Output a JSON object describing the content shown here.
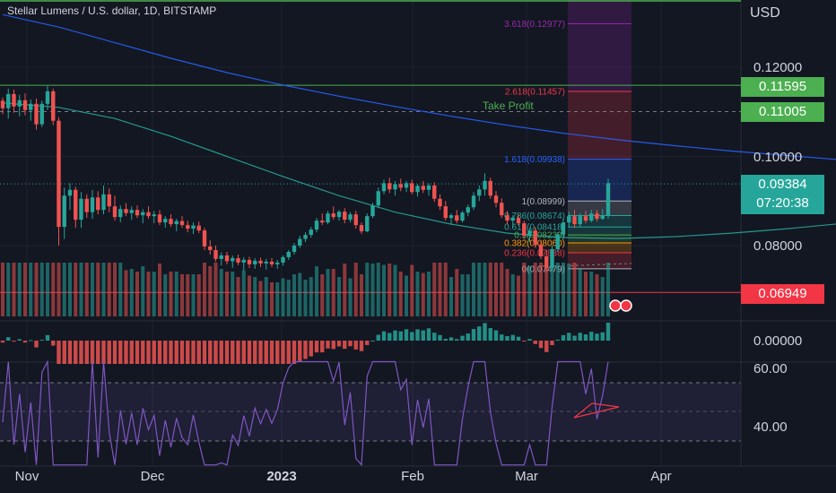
{
  "header": {
    "symbol_title": "Stellar Lumens / U.S. dollar, 1D, BITSTAMP",
    "currency": "USD"
  },
  "price_tags": {
    "tp1": {
      "value": "0.11595",
      "color": "#4caf50"
    },
    "tp2": {
      "value": "0.11005",
      "color": "#4caf50"
    },
    "last": {
      "value": "0.09384",
      "countdown": "07:20:38",
      "color": "#26a69a"
    },
    "stop": {
      "value": "0.06949",
      "color": "#f23645"
    }
  },
  "annotations": {
    "take_profit": "Take Profit"
  },
  "chart_data": {
    "type": "candlestick",
    "price_axis": {
      "ticks": [
        "0.12000",
        "0.10000",
        "0.08000"
      ],
      "tick_values": [
        0.12,
        0.1,
        0.08
      ],
      "range": [
        0.0625,
        0.1355
      ]
    },
    "time_axis": {
      "labels": [
        "Nov",
        "Dec",
        "2023",
        "Feb",
        "Mar",
        "Apr"
      ]
    },
    "horizontal_levels": [
      {
        "price": 0.11595,
        "style": "solid",
        "color": "#4caf50"
      },
      {
        "price": 0.11005,
        "style": "dashed",
        "color": "#787b86"
      },
      {
        "price": 0.09384,
        "style": "dotted",
        "color": "#26a69a"
      },
      {
        "price": 0.06949,
        "style": "solid",
        "color": "#f23645"
      }
    ],
    "fibonacci_extension": [
      {
        "label": "3.618(0.12977)",
        "price": 0.12977,
        "color": "#9c27b0"
      },
      {
        "label": "2.618(0.11457)",
        "price": 0.11457,
        "color": "#f23645"
      },
      {
        "label": "1.618(0.09938)",
        "price": 0.09938,
        "color": "#2962ff"
      },
      {
        "label": "1(0.08999)",
        "price": 0.08999,
        "color": "#b2b5be"
      },
      {
        "label": "0.786(0.08674)",
        "price": 0.08674,
        "color": "#26a69a"
      },
      {
        "label": "0.618(0.08418)",
        "price": 0.08418,
        "color": "#26a69a"
      },
      {
        "label": "0.5(0.08239)",
        "price": 0.08239,
        "color": "#4caf50"
      },
      {
        "label": "0.382(0.08060)",
        "price": 0.0806,
        "color": "#ff9800"
      },
      {
        "label": "0.236(0.07838)",
        "price": 0.07838,
        "color": "#f23645"
      },
      {
        "label": "0(0.07479)",
        "price": 0.07479,
        "color": "#b2b5be"
      }
    ],
    "macd": {
      "tick": "0.00000"
    },
    "rsi": {
      "ticks": [
        "60.00",
        "40.00"
      ]
    },
    "series": [
      {
        "name": "price",
        "points": [
          [
            0.1125,
            0.1132,
            0.1095,
            0.1108
          ],
          [
            0.1108,
            0.1152,
            0.1085,
            0.114
          ],
          [
            0.114,
            0.115,
            0.1098,
            0.1112
          ],
          [
            0.1112,
            0.1138,
            0.109,
            0.1126
          ],
          [
            0.1126,
            0.1141,
            0.1092,
            0.1104
          ],
          [
            0.1104,
            0.1128,
            0.108,
            0.1118
          ],
          [
            0.1118,
            0.113,
            0.106,
            0.1072
          ],
          [
            0.1072,
            0.1125,
            0.1066,
            0.1118
          ],
          [
            0.1118,
            0.1158,
            0.1104,
            0.1146
          ],
          [
            0.1146,
            0.1152,
            0.107,
            0.108
          ],
          [
            0.108,
            0.1088,
            0.08,
            0.0842
          ],
          [
            0.0842,
            0.093,
            0.0815,
            0.0912
          ],
          [
            0.0912,
            0.094,
            0.088,
            0.0925
          ],
          [
            0.0925,
            0.0932,
            0.084,
            0.0858
          ],
          [
            0.0858,
            0.092,
            0.084,
            0.0905
          ],
          [
            0.0905,
            0.0915,
            0.0862,
            0.0875
          ],
          [
            0.0875,
            0.0925,
            0.086,
            0.0908
          ],
          [
            0.0908,
            0.0922,
            0.087,
            0.088
          ],
          [
            0.088,
            0.0935,
            0.087,
            0.0915
          ],
          [
            0.0915,
            0.0928,
            0.0875,
            0.0888
          ],
          [
            0.0888,
            0.0912,
            0.0856,
            0.0864
          ],
          [
            0.0864,
            0.089,
            0.0852,
            0.0882
          ],
          [
            0.0882,
            0.0895,
            0.0866,
            0.0873
          ],
          [
            0.0873,
            0.0888,
            0.0858,
            0.088
          ],
          [
            0.088,
            0.089,
            0.0862,
            0.0868
          ],
          [
            0.0868,
            0.0882,
            0.085,
            0.0875
          ],
          [
            0.0875,
            0.0888,
            0.086,
            0.0866
          ],
          [
            0.0866,
            0.0878,
            0.085,
            0.087
          ],
          [
            0.087,
            0.088,
            0.0846,
            0.0852
          ],
          [
            0.0852,
            0.0866,
            0.084,
            0.086
          ],
          [
            0.086,
            0.087,
            0.0842,
            0.0848
          ],
          [
            0.0848,
            0.086,
            0.0832,
            0.0855
          ],
          [
            0.0855,
            0.0866,
            0.084,
            0.0846
          ],
          [
            0.0846,
            0.0856,
            0.083,
            0.0838
          ],
          [
            0.0838,
            0.0852,
            0.0826,
            0.0845
          ],
          [
            0.0845,
            0.0854,
            0.0828,
            0.0834
          ],
          [
            0.0834,
            0.084,
            0.079,
            0.0798
          ],
          [
            0.0798,
            0.0812,
            0.078,
            0.079
          ],
          [
            0.079,
            0.08,
            0.0764,
            0.077
          ],
          [
            0.077,
            0.0785,
            0.0755,
            0.0778
          ],
          [
            0.0778,
            0.0786,
            0.0758,
            0.0765
          ],
          [
            0.0765,
            0.0778,
            0.075,
            0.0772
          ],
          [
            0.0772,
            0.078,
            0.0756,
            0.0762
          ],
          [
            0.0762,
            0.0774,
            0.0745,
            0.0768
          ],
          [
            0.0768,
            0.0775,
            0.075,
            0.0758
          ],
          [
            0.0758,
            0.0772,
            0.0748,
            0.0766
          ],
          [
            0.0766,
            0.0773,
            0.0752,
            0.076
          ],
          [
            0.076,
            0.077,
            0.0746,
            0.0764
          ],
          [
            0.0764,
            0.0772,
            0.0752,
            0.0758
          ],
          [
            0.0758,
            0.0768,
            0.0748,
            0.0762
          ],
          [
            0.0762,
            0.0778,
            0.0755,
            0.0774
          ],
          [
            0.0774,
            0.079,
            0.0768,
            0.0786
          ],
          [
            0.0786,
            0.0806,
            0.078,
            0.08
          ],
          [
            0.08,
            0.0822,
            0.0795,
            0.0815
          ],
          [
            0.0815,
            0.083,
            0.0808,
            0.0824
          ],
          [
            0.0824,
            0.0842,
            0.0818,
            0.0836
          ],
          [
            0.0836,
            0.0862,
            0.083,
            0.0856
          ],
          [
            0.0856,
            0.0872,
            0.0846,
            0.0852
          ],
          [
            0.0852,
            0.0878,
            0.0848,
            0.0872
          ],
          [
            0.0872,
            0.0888,
            0.0858,
            0.0864
          ],
          [
            0.0864,
            0.088,
            0.0856,
            0.0876
          ],
          [
            0.0876,
            0.0884,
            0.085,
            0.0858
          ],
          [
            0.0858,
            0.0875,
            0.0852,
            0.087
          ],
          [
            0.087,
            0.0878,
            0.0838,
            0.0846
          ],
          [
            0.0846,
            0.0852,
            0.0826,
            0.0832
          ],
          [
            0.0832,
            0.0872,
            0.083,
            0.0866
          ],
          [
            0.0866,
            0.0896,
            0.0862,
            0.089
          ],
          [
            0.089,
            0.093,
            0.0884,
            0.0922
          ],
          [
            0.0922,
            0.0948,
            0.0915,
            0.094
          ],
          [
            0.094,
            0.0952,
            0.0918,
            0.0926
          ],
          [
            0.0926,
            0.0945,
            0.0912,
            0.0938
          ],
          [
            0.0938,
            0.095,
            0.0922,
            0.093
          ],
          [
            0.093,
            0.0945,
            0.092,
            0.094
          ],
          [
            0.094,
            0.0948,
            0.0915,
            0.092
          ],
          [
            0.092,
            0.0938,
            0.091,
            0.0934
          ],
          [
            0.0934,
            0.0945,
            0.0918,
            0.0925
          ],
          [
            0.0925,
            0.094,
            0.0912,
            0.0935
          ],
          [
            0.0935,
            0.0942,
            0.0898,
            0.0905
          ],
          [
            0.0905,
            0.0915,
            0.088,
            0.0888
          ],
          [
            0.0888,
            0.09,
            0.0856,
            0.0862
          ],
          [
            0.0862,
            0.0872,
            0.0848,
            0.0868
          ],
          [
            0.0868,
            0.088,
            0.085,
            0.0856
          ],
          [
            0.0856,
            0.0878,
            0.0852,
            0.0874
          ],
          [
            0.0874,
            0.0892,
            0.0866,
            0.0886
          ],
          [
            0.0886,
            0.092,
            0.088,
            0.0912
          ],
          [
            0.0912,
            0.0935,
            0.09,
            0.0926
          ],
          [
            0.0926,
            0.0962,
            0.0912,
            0.0945
          ],
          [
            0.0945,
            0.0952,
            0.0905,
            0.0912
          ],
          [
            0.0912,
            0.0922,
            0.0886,
            0.0896
          ],
          [
            0.0896,
            0.0906,
            0.0862,
            0.0868
          ],
          [
            0.0868,
            0.0878,
            0.0848,
            0.0856
          ],
          [
            0.0856,
            0.0868,
            0.0842,
            0.0862
          ],
          [
            0.0862,
            0.087,
            0.0845,
            0.085
          ],
          [
            0.085,
            0.0856,
            0.0815,
            0.0822
          ],
          [
            0.0822,
            0.084,
            0.0808,
            0.0834
          ],
          [
            0.0834,
            0.0842,
            0.0795,
            0.0802
          ],
          [
            0.0802,
            0.081,
            0.077,
            0.0776
          ],
          [
            0.0776,
            0.079,
            0.074,
            0.075
          ],
          [
            0.075,
            0.08,
            0.0745,
            0.0792
          ],
          [
            0.0792,
            0.083,
            0.0786,
            0.0825
          ],
          [
            0.0825,
            0.086,
            0.0818,
            0.0852
          ],
          [
            0.0852,
            0.0876,
            0.0842,
            0.0866
          ],
          [
            0.0866,
            0.088,
            0.084,
            0.0848
          ],
          [
            0.0848,
            0.0872,
            0.0842,
            0.0866
          ],
          [
            0.0866,
            0.0878,
            0.085,
            0.0856
          ],
          [
            0.0856,
            0.088,
            0.0852,
            0.0872
          ],
          [
            0.0872,
            0.088,
            0.0854,
            0.086
          ],
          [
            0.086,
            0.0882,
            0.0858,
            0.0868
          ],
          [
            0.0868,
            0.095,
            0.086,
            0.094
          ]
        ]
      },
      {
        "name": "ema_long",
        "points": [
          [
            0,
            0.1318
          ],
          [
            10,
            0.129
          ],
          [
            20,
            0.1255
          ],
          [
            30,
            0.122
          ],
          [
            40,
            0.1188
          ],
          [
            50,
            0.116
          ],
          [
            60,
            0.1135
          ],
          [
            70,
            0.1112
          ],
          [
            80,
            0.109
          ],
          [
            90,
            0.107
          ],
          [
            100,
            0.1052
          ],
          [
            110,
            0.1037
          ],
          [
            120,
            0.1024
          ],
          [
            130,
            0.1012
          ],
          [
            140,
            0.1002
          ],
          [
            150,
            0.0992
          ],
          [
            160,
            0.0982
          ],
          [
            170,
            0.0975
          ],
          [
            180,
            0.097
          ]
        ]
      },
      {
        "name": "ema_short",
        "points": [
          [
            0,
            0.112
          ],
          [
            10,
            0.111
          ],
          [
            20,
            0.1085
          ],
          [
            30,
            0.1045
          ],
          [
            40,
            0.1
          ],
          [
            50,
            0.0955
          ],
          [
            60,
            0.0912
          ],
          [
            70,
            0.0875
          ],
          [
            80,
            0.0848
          ],
          [
            90,
            0.0828
          ],
          [
            100,
            0.0818
          ],
          [
            110,
            0.0816
          ],
          [
            120,
            0.082
          ],
          [
            130,
            0.0828
          ],
          [
            140,
            0.0838
          ],
          [
            150,
            0.085
          ],
          [
            160,
            0.0862
          ],
          [
            170,
            0.087
          ],
          [
            180,
            0.0878
          ]
        ]
      }
    ]
  }
}
